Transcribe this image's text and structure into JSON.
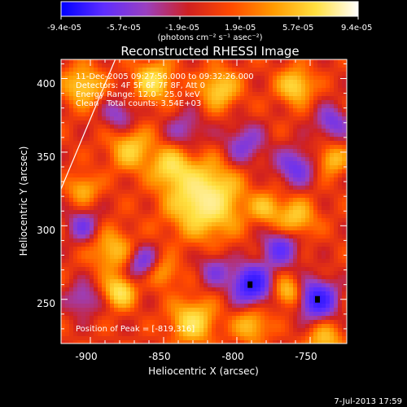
{
  "colorbar": {
    "ticks": [
      "-9.4e-05",
      "-5.7e-05",
      "-1.9e-05",
      "1.9e-05",
      "5.7e-05",
      "9.4e-05"
    ],
    "unit_label": "(photons cm⁻² s⁻¹ asec⁻²)",
    "range": [
      -9.4e-05,
      9.4e-05
    ],
    "colormap_colors": [
      "#0000ff",
      "#5e2dff",
      "#9a40c0",
      "#d02020",
      "#ff4a00",
      "#ff9a00",
      "#ffe040",
      "#ffffff"
    ]
  },
  "chart_data": {
    "type": "heatmap",
    "title": "Reconstructed RHESSI Image",
    "xlabel": "Heliocentric X (arcsec)",
    "ylabel": "Heliocentric Y (arcsec)",
    "xlim": [
      -920,
      -725
    ],
    "ylim": [
      220,
      413
    ],
    "xticks": [
      -900,
      -850,
      -800,
      -750
    ],
    "yticks": [
      250,
      300,
      350,
      400
    ],
    "x_tick_labels": [
      "-900",
      "-850",
      "-800",
      "-750"
    ],
    "y_tick_labels": [
      "250",
      "300",
      "350",
      "400"
    ],
    "annotations": [
      "11-Dec-2005 09:27:56.000 to 09:32:26.000",
      "Detectors: 4F 5F 6F 7F 8F, Att 0",
      "Energy Range: 12.0 - 25.0 keV",
      "Clean",
      "Total counts: 3.54E+03",
      "Position of Peak = [-819,316]"
    ],
    "peak": {
      "x": -819,
      "y": 316
    },
    "limb_line": [
      {
        "x": -920,
        "y": 325
      },
      {
        "x": -883,
        "y": 413
      }
    ],
    "markers": [
      {
        "x": -791,
        "y": 260
      },
      {
        "x": -745,
        "y": 250
      }
    ],
    "map_sources_note": "smooth intensity field; positive=warm, negative=cool",
    "sources": [
      {
        "x": -822,
        "y": 318,
        "amp": 1.0,
        "s": 16
      },
      {
        "x": -872,
        "y": 352,
        "amp": 0.55,
        "s": 10
      },
      {
        "x": -845,
        "y": 340,
        "amp": 0.6,
        "s": 9
      },
      {
        "x": -905,
        "y": 395,
        "amp": 0.6,
        "s": 9
      },
      {
        "x": -857,
        "y": 398,
        "amp": 0.7,
        "s": 9
      },
      {
        "x": -812,
        "y": 393,
        "amp": 0.6,
        "s": 9
      },
      {
        "x": -885,
        "y": 283,
        "amp": 0.5,
        "s": 10
      },
      {
        "x": -880,
        "y": 255,
        "amp": 0.75,
        "s": 7
      },
      {
        "x": -760,
        "y": 395,
        "amp": 0.65,
        "s": 8
      },
      {
        "x": -760,
        "y": 305,
        "amp": 0.55,
        "s": 9
      },
      {
        "x": -735,
        "y": 345,
        "amp": 0.5,
        "s": 7
      },
      {
        "x": -830,
        "y": 235,
        "amp": 0.7,
        "s": 10
      },
      {
        "x": -790,
        "y": 232,
        "amp": 0.5,
        "s": 8
      },
      {
        "x": -765,
        "y": 255,
        "amp": 0.55,
        "s": 7
      },
      {
        "x": -780,
        "y": 312,
        "amp": 0.45,
        "s": 7
      },
      {
        "x": -905,
        "y": 325,
        "amp": 0.45,
        "s": 7
      },
      {
        "x": -850,
        "y": 268,
        "amp": 0.4,
        "s": 7
      },
      {
        "x": -740,
        "y": 222,
        "amp": 0.5,
        "s": 8
      },
      {
        "x": -790,
        "y": 260,
        "amp": -1.0,
        "s": 9
      },
      {
        "x": -745,
        "y": 250,
        "amp": -0.95,
        "s": 9
      },
      {
        "x": -770,
        "y": 285,
        "amp": -0.6,
        "s": 9
      },
      {
        "x": -760,
        "y": 340,
        "amp": -0.55,
        "s": 9
      },
      {
        "x": -795,
        "y": 355,
        "amp": -0.45,
        "s": 10
      },
      {
        "x": -735,
        "y": 370,
        "amp": -0.5,
        "s": 8
      },
      {
        "x": -865,
        "y": 275,
        "amp": -0.5,
        "s": 8
      },
      {
        "x": -905,
        "y": 300,
        "amp": -0.45,
        "s": 8
      },
      {
        "x": -905,
        "y": 250,
        "amp": -0.4,
        "s": 8
      },
      {
        "x": -880,
        "y": 375,
        "amp": -0.4,
        "s": 8
      },
      {
        "x": -835,
        "y": 365,
        "amp": -0.35,
        "s": 9
      },
      {
        "x": -815,
        "y": 270,
        "amp": -0.4,
        "s": 8
      }
    ]
  },
  "footer": {
    "timestamp": "7-Jul-2013 17:59"
  }
}
